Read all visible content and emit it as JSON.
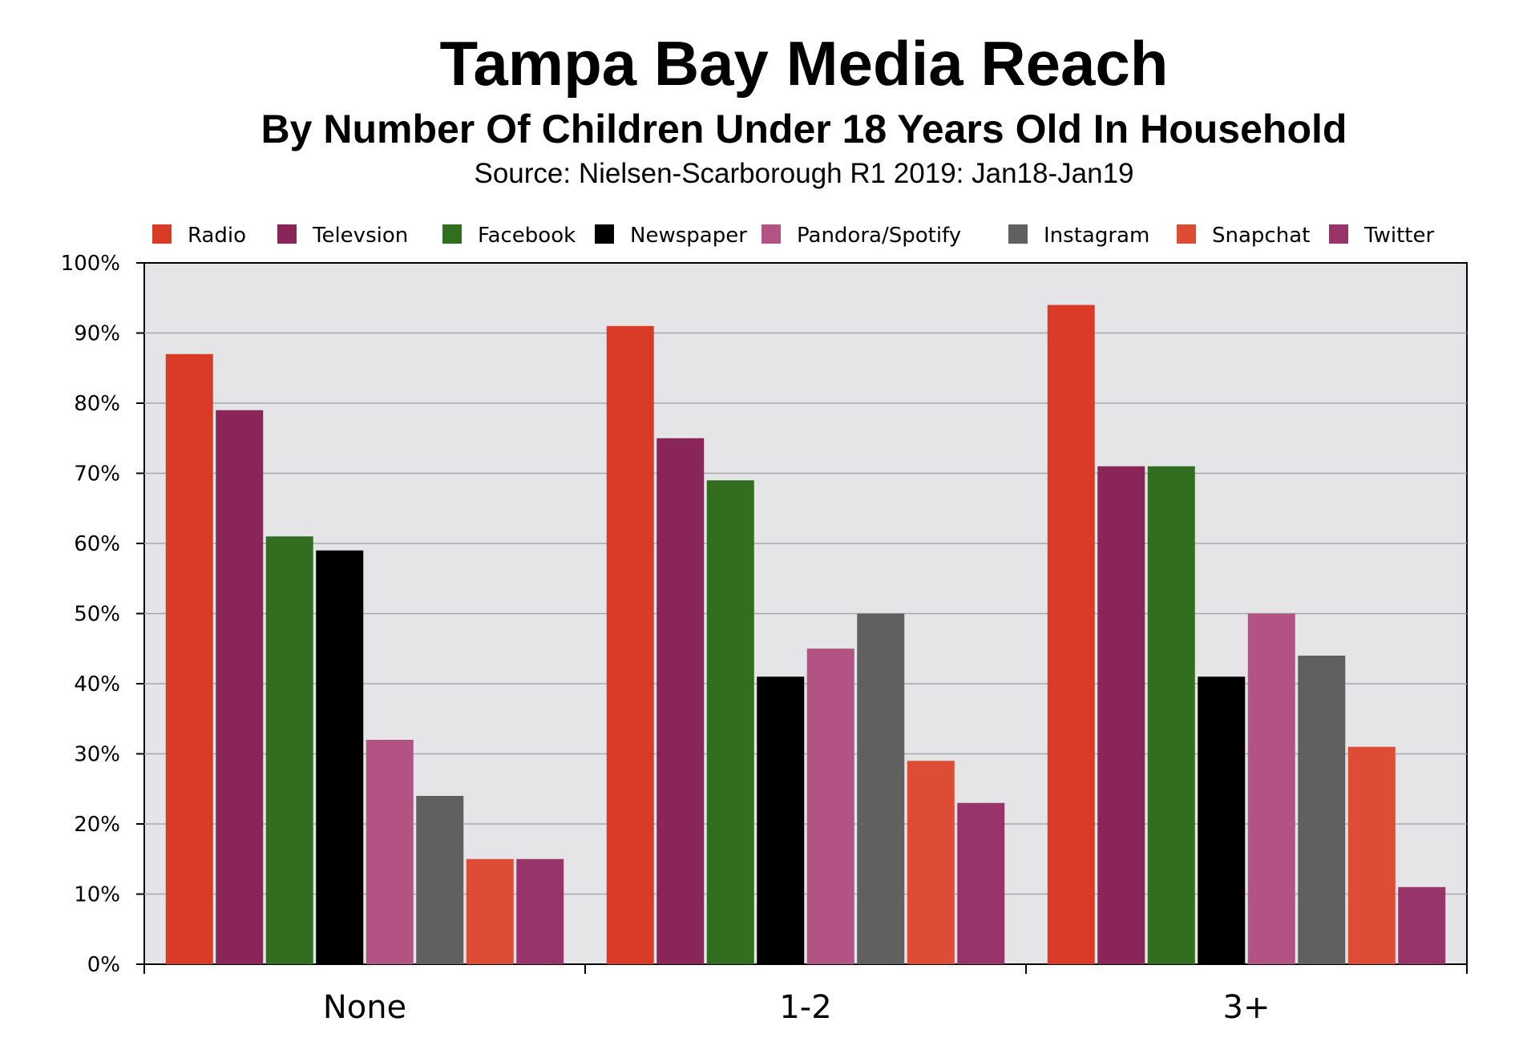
{
  "chart_data": {
    "type": "bar",
    "title": "Tampa Bay Media Reach",
    "subtitle": "By Number Of Children Under 18 Years Old In Household",
    "source": "Source: Nielsen-Scarborough R1 2019: Jan18-Jan19",
    "categories": [
      "None",
      "1-2",
      "3+"
    ],
    "ylim": [
      0,
      100
    ],
    "y_ticks": [
      0,
      10,
      20,
      30,
      40,
      50,
      60,
      70,
      80,
      90,
      100
    ],
    "y_tick_labels": [
      "0%",
      "10%",
      "20%",
      "30%",
      "40%",
      "50%",
      "60%",
      "70%",
      "80%",
      "90%",
      "100%"
    ],
    "grid": true,
    "legend_position": "top",
    "plot_background": "#e5e5e8",
    "series": [
      {
        "name": "Radio",
        "color": "#d93b26",
        "values": [
          87,
          91,
          94
        ]
      },
      {
        "name": "Televsion",
        "color": "#8a2559",
        "values": [
          79,
          75,
          71
        ]
      },
      {
        "name": "Facebook",
        "color": "#316e1f",
        "values": [
          61,
          69,
          71
        ]
      },
      {
        "name": "Newspaper",
        "color": "#000000",
        "values": [
          59,
          41,
          41
        ]
      },
      {
        "name": "Pandora/Spotify",
        "color": "#b35384",
        "values": [
          32,
          45,
          50
        ]
      },
      {
        "name": "Instagram",
        "color": "#606060",
        "values": [
          24,
          50,
          44
        ]
      },
      {
        "name": "Snapchat",
        "color": "#dd4c35",
        "values": [
          15,
          29,
          31
        ]
      },
      {
        "name": "Twitter",
        "color": "#97356b",
        "values": [
          15,
          23,
          11
        ]
      }
    ]
  }
}
